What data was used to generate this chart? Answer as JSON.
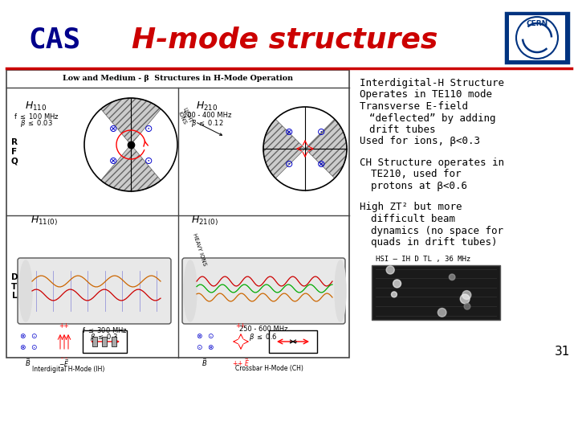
{
  "title": "H-mode structures",
  "title_color": "#cc0000",
  "cas_color": "#00008B",
  "bg_color": "#ffffff",
  "separator_color": "#cc0000",
  "slide_number": "31",
  "text_block1_lines": [
    "Interdigital-H Structure",
    "Operates in TE110 mode",
    "Transverse E-field",
    "“deflected” by adding",
    "drift tubes",
    "Used for ions, β<0.3"
  ],
  "text_block2_lines": [
    "CH Structure operates in",
    "TE210, used for",
    "protons at β<0.6"
  ],
  "text_block3_lines": [
    "High ZT² but more",
    "difficult beam",
    "dynamics (no space for",
    "quads in drift tubes)"
  ],
  "photo_caption": "HSI – IH D TL , 36 MHz",
  "diagram_label": "Low and Medium - β  Structures in H-Mode Operation",
  "figsize": [
    7.2,
    5.4
  ],
  "dpi": 100
}
